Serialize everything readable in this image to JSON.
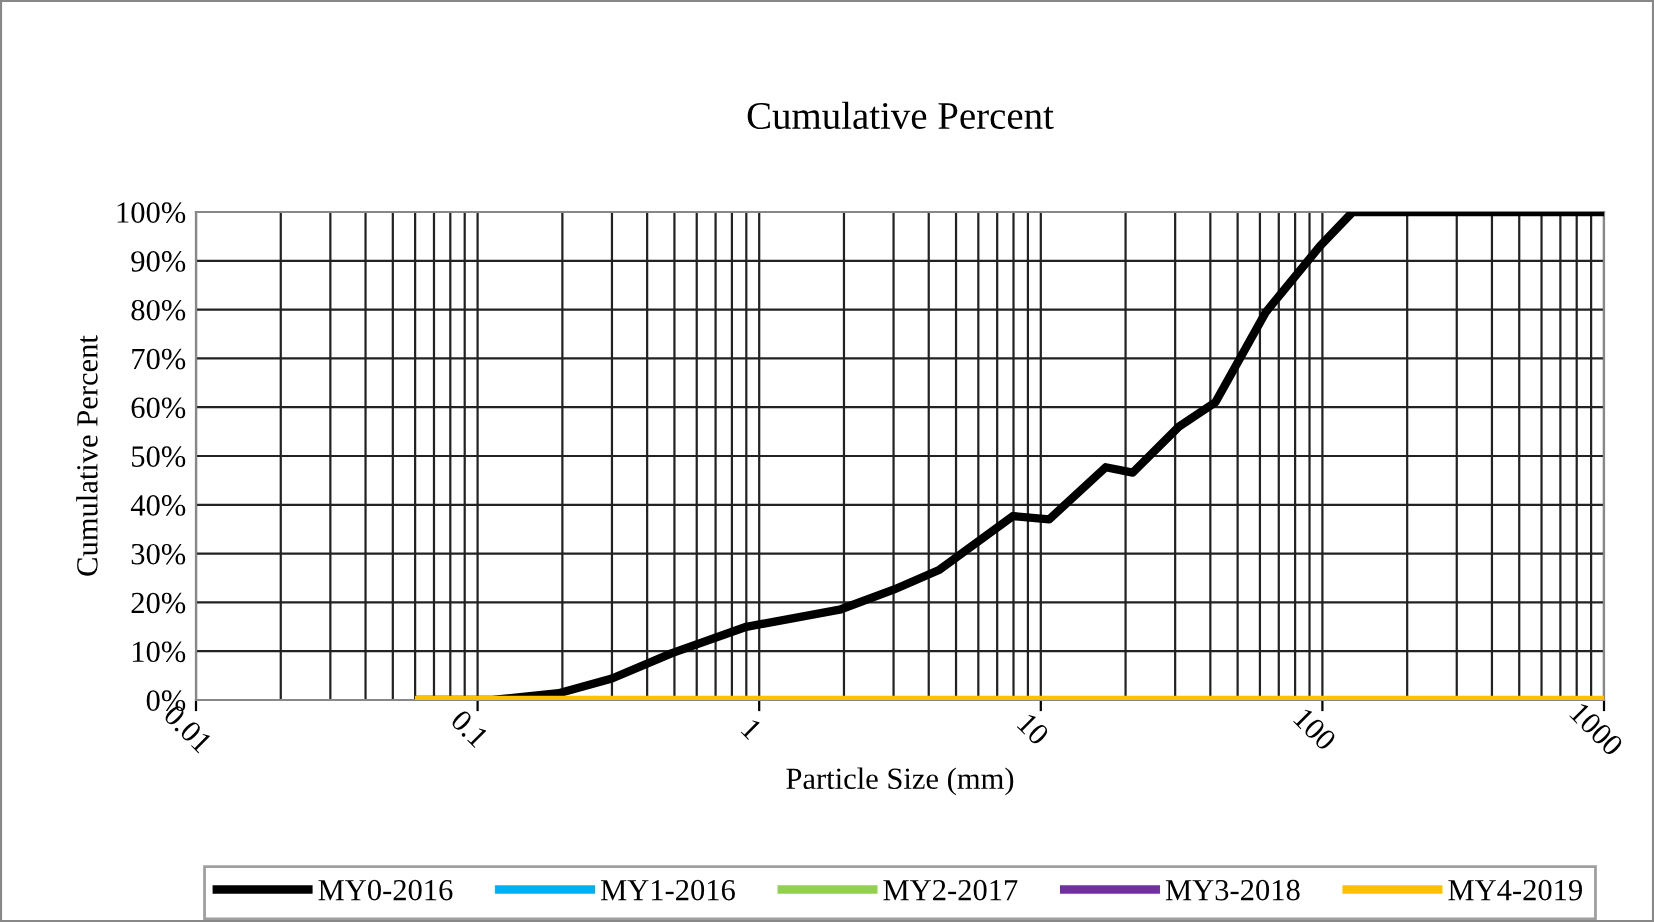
{
  "chart_data": {
    "type": "line",
    "title": "Cumulative Percent",
    "xlabel": "Particle Size (mm)",
    "ylabel": "Cumulative Percent",
    "log": "x",
    "grid": true,
    "legend": "bottom",
    "marker": "none",
    "line_style": "solid",
    "xlim": [
      0.01,
      1000
    ],
    "xticks": [
      0.01,
      0.1,
      1,
      10,
      100,
      1000
    ],
    "ylim": [
      0,
      100
    ],
    "yticks": [
      {
        "value": 0,
        "label": "0%"
      },
      {
        "value": 10,
        "label": "10%"
      },
      {
        "value": 20,
        "label": "20%"
      },
      {
        "value": 30,
        "label": "30%"
      },
      {
        "value": 40,
        "label": "40%"
      },
      {
        "value": 50,
        "label": "50%"
      },
      {
        "value": 60,
        "label": "60%"
      },
      {
        "value": 70,
        "label": "70%"
      },
      {
        "value": 80,
        "label": "80%"
      },
      {
        "value": 90,
        "label": "90%"
      },
      {
        "value": 100,
        "label": "100%"
      }
    ],
    "series": [
      {
        "name": "MY0-2016",
        "color": "#000000",
        "x": [
          0.062,
          0.113,
          0.194,
          0.3,
          0.49,
          0.9,
          1.93,
          3.0,
          4.37,
          7.96,
          10.7,
          17,
          21.2,
          30.9,
          41.7,
          63,
          98,
          128,
          1000
        ],
        "values": [
          0,
          0,
          1.4,
          4.4,
          9.6,
          15,
          18.5,
          22.6,
          26.7,
          37.7,
          37,
          47.7,
          46.6,
          56,
          61,
          79.5,
          93,
          100,
          100
        ]
      },
      {
        "name": "MY1-2016",
        "color": "#00b0f0"
      },
      {
        "name": "MY2-2017",
        "color": "#92d050"
      },
      {
        "name": "MY3-2018",
        "color": "#7030a0"
      },
      {
        "name": "MY4-2019",
        "color": "#ffc000",
        "x": [
          0.062,
          1000
        ],
        "values": [
          0,
          0
        ]
      }
    ]
  }
}
